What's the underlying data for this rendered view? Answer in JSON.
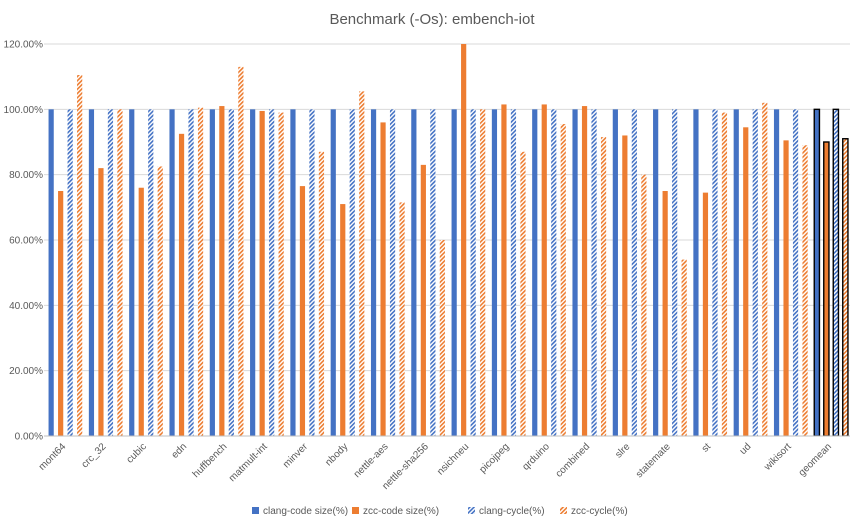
{
  "chart_data": {
    "type": "bar",
    "title": "Benchmark (-Os): embench-iot",
    "xlabel": "",
    "ylabel": "",
    "ylim": [
      0,
      120
    ],
    "yticks": [
      "0.00%",
      "20.00%",
      "40.00%",
      "60.00%",
      "80.00%",
      "100.00%",
      "120.00%"
    ],
    "grid": true,
    "legend_position": "bottom",
    "categories": [
      "mont64",
      "crc_32",
      "cubic",
      "edn",
      "huffbench",
      "matmult-int",
      "minver",
      "nbody",
      "nettle-aes",
      "nettle-sha256",
      "nsichneu",
      "picojpeg",
      "qrduino",
      "combined",
      "slre",
      "statemate",
      "st",
      "ud",
      "wikisort",
      "geomean"
    ],
    "highlight_category": "geomean",
    "series": [
      {
        "name": "clang-code size(%)",
        "color": "#4472C4",
        "pattern": "solid",
        "values": [
          100,
          100,
          100,
          100,
          100,
          100,
          100,
          100,
          100,
          100,
          100,
          100,
          100,
          100,
          100,
          100,
          100,
          100,
          100,
          100
        ]
      },
      {
        "name": "zcc-code size(%)",
        "color": "#ED7D31",
        "pattern": "solid",
        "values": [
          75,
          82,
          76,
          92.5,
          101,
          99.5,
          76.5,
          71,
          96,
          83,
          123,
          101.5,
          101.5,
          101,
          92,
          75,
          74.5,
          94.5,
          90.5,
          90
        ]
      },
      {
        "name": "clang-cycle(%)",
        "color": "#4472C4",
        "pattern": "hatched",
        "values": [
          100,
          100,
          100,
          100,
          100,
          100,
          100,
          100,
          100,
          100,
          100,
          100,
          100,
          100,
          100,
          100,
          100,
          100,
          100,
          100
        ]
      },
      {
        "name": "zcc-cycle(%)",
        "color": "#ED7D31",
        "pattern": "hatched",
        "values": [
          110.5,
          100,
          82.5,
          100.5,
          113,
          99,
          87,
          105.5,
          71.5,
          60,
          100,
          87,
          95.5,
          91.5,
          80,
          54,
          99,
          102,
          89,
          91
        ]
      }
    ]
  }
}
